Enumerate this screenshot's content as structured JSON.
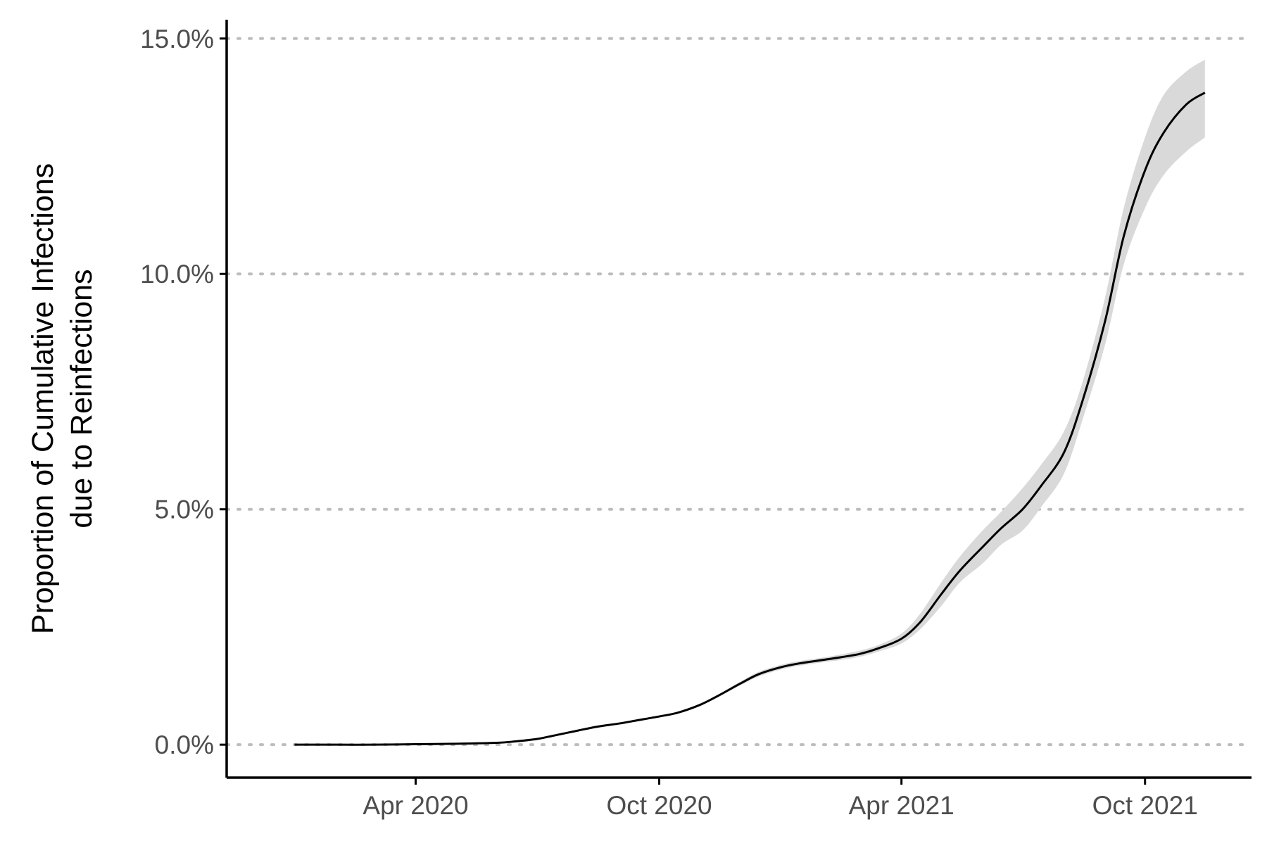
{
  "chart_data": {
    "type": "line",
    "title": "",
    "xlabel": "",
    "ylabel": [
      "Proportion of Cumulative Infections",
      "due to Reinfections"
    ],
    "x_type": "date",
    "xlim": [
      "2019-11-11",
      "2021-12-20"
    ],
    "ylim": [
      -0.7,
      15.4
    ],
    "x_ticks": [
      {
        "value": "2020-04-01",
        "label": "Apr 2020"
      },
      {
        "value": "2020-10-01",
        "label": "Oct 2020"
      },
      {
        "value": "2021-04-01",
        "label": "Apr 2021"
      },
      {
        "value": "2021-10-01",
        "label": "Oct 2021"
      }
    ],
    "y_ticks": [
      {
        "value": 0,
        "label": "0.0%"
      },
      {
        "value": 5,
        "label": "5.0%"
      },
      {
        "value": 10,
        "label": "10.0%"
      },
      {
        "value": 15,
        "label": "15.0%"
      }
    ],
    "grid": {
      "major_y": true,
      "style": "dotted"
    },
    "colors": {
      "line": "#000000",
      "band": "#d9d9d9",
      "grid": "#bdbdbd",
      "axis": "#000000",
      "tick_label": "#4d4d4d",
      "axis_title": "#000000"
    },
    "series": [
      {
        "x": [
          "2020-01-01",
          "2020-02-01",
          "2020-03-01",
          "2020-04-01",
          "2020-05-01",
          "2020-06-01",
          "2020-06-15",
          "2020-07-01",
          "2020-07-15",
          "2020-08-01",
          "2020-08-15",
          "2020-09-01",
          "2020-09-15",
          "2020-10-01",
          "2020-10-15",
          "2020-11-01",
          "2020-11-15",
          "2020-12-01",
          "2020-12-15",
          "2021-01-01",
          "2021-01-15",
          "2021-02-01",
          "2021-02-15",
          "2021-03-01",
          "2021-03-15",
          "2021-04-01",
          "2021-04-15",
          "2021-05-01",
          "2021-05-15",
          "2021-06-01",
          "2021-06-15",
          "2021-07-01",
          "2021-07-15",
          "2021-08-01",
          "2021-08-15",
          "2021-09-01",
          "2021-09-15",
          "2021-10-01",
          "2021-10-15",
          "2021-11-01",
          "2021-11-15"
        ],
        "y": [
          0,
          0,
          0,
          0.01,
          0.02,
          0.04,
          0.07,
          0.12,
          0.2,
          0.3,
          0.38,
          0.45,
          0.52,
          0.6,
          0.68,
          0.85,
          1.05,
          1.3,
          1.5,
          1.65,
          1.73,
          1.8,
          1.86,
          1.93,
          2.05,
          2.25,
          2.6,
          3.2,
          3.7,
          4.2,
          4.6,
          5.0,
          5.5,
          6.2,
          7.3,
          9.0,
          10.8,
          12.2,
          13.0,
          13.6,
          13.85
        ],
        "lower": [
          0,
          0,
          0,
          0.01,
          0.02,
          0.04,
          0.07,
          0.12,
          0.2,
          0.3,
          0.38,
          0.45,
          0.52,
          0.6,
          0.67,
          0.83,
          1.02,
          1.26,
          1.45,
          1.6,
          1.68,
          1.75,
          1.8,
          1.87,
          1.98,
          2.15,
          2.45,
          2.95,
          3.45,
          3.85,
          4.25,
          4.55,
          5.05,
          5.75,
          6.9,
          8.5,
          10.2,
          11.4,
          12.1,
          12.6,
          12.9
        ],
        "upper": [
          0,
          0,
          0,
          0.01,
          0.02,
          0.04,
          0.07,
          0.12,
          0.2,
          0.3,
          0.38,
          0.45,
          0.52,
          0.6,
          0.69,
          0.87,
          1.08,
          1.34,
          1.55,
          1.7,
          1.78,
          1.85,
          1.92,
          2.0,
          2.12,
          2.36,
          2.78,
          3.45,
          4.0,
          4.55,
          4.95,
          5.45,
          5.95,
          6.65,
          7.7,
          9.5,
          11.4,
          12.9,
          13.8,
          14.3,
          14.55
        ]
      }
    ]
  }
}
